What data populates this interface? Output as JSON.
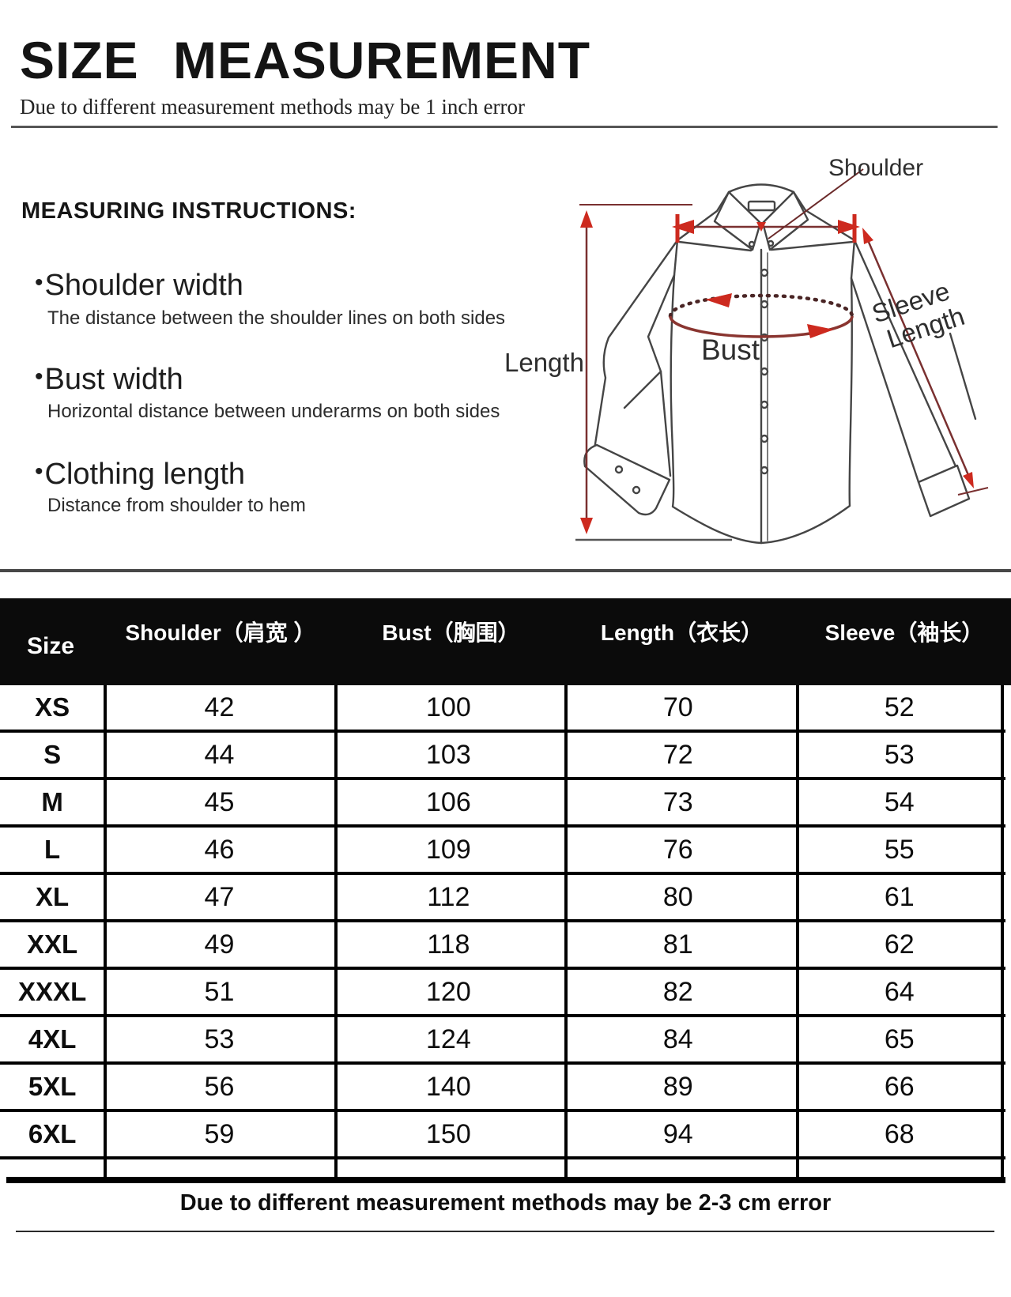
{
  "page": {
    "title": "SIZE MEASUREMENT",
    "subtitle": "Due to different measurement methods may be 1 inch error",
    "footer_note": "Due to different measurement methods may be 2-3 cm error"
  },
  "instructions": {
    "heading": "MEASURING INSTRUCTIONS:",
    "bullet": "•",
    "items": [
      {
        "term": "Shoulder width",
        "description": "The distance between the shoulder lines on both sides"
      },
      {
        "term": "Bust width",
        "description": "Horizontal distance between underarms on both sides"
      },
      {
        "term": "Clothing length",
        "description": "Distance from shoulder to hem"
      }
    ]
  },
  "diagram": {
    "labels": {
      "shoulder": "Shoulder",
      "length": "Length",
      "bust": "Bust",
      "sleeve_line1": "Sleeve",
      "sleeve_line2": "Length"
    },
    "colors": {
      "outline": "#454545",
      "measure_line": "#7a3030",
      "arrow": "#cd2a1f"
    }
  },
  "size_chart": {
    "columns": [
      "Size",
      "Shoulder（肩宽 ）",
      "Bust（胸围）",
      "Length（衣长）",
      "Sleeve（袖长）"
    ],
    "rows": [
      {
        "size": "XS",
        "shoulder": "42",
        "bust": "100",
        "length": "70",
        "sleeve": "52"
      },
      {
        "size": "S",
        "shoulder": "44",
        "bust": "103",
        "length": "72",
        "sleeve": "53"
      },
      {
        "size": "M",
        "shoulder": "45",
        "bust": "106",
        "length": "73",
        "sleeve": "54"
      },
      {
        "size": "L",
        "shoulder": "46",
        "bust": "109",
        "length": "76",
        "sleeve": "55"
      },
      {
        "size": "XL",
        "shoulder": "47",
        "bust": "112",
        "length": "80",
        "sleeve": "61"
      },
      {
        "size": "XXL",
        "shoulder": "49",
        "bust": "118",
        "length": "81",
        "sleeve": "62"
      },
      {
        "size": "XXXL",
        "shoulder": "51",
        "bust": "120",
        "length": "82",
        "sleeve": "64"
      },
      {
        "size": "4XL",
        "shoulder": "53",
        "bust": "124",
        "length": "84",
        "sleeve": "65"
      },
      {
        "size": "5XL",
        "shoulder": "56",
        "bust": "140",
        "length": "89",
        "sleeve": "66"
      },
      {
        "size": "6XL",
        "shoulder": "59",
        "bust": "150",
        "length": "94",
        "sleeve": "68"
      }
    ]
  }
}
